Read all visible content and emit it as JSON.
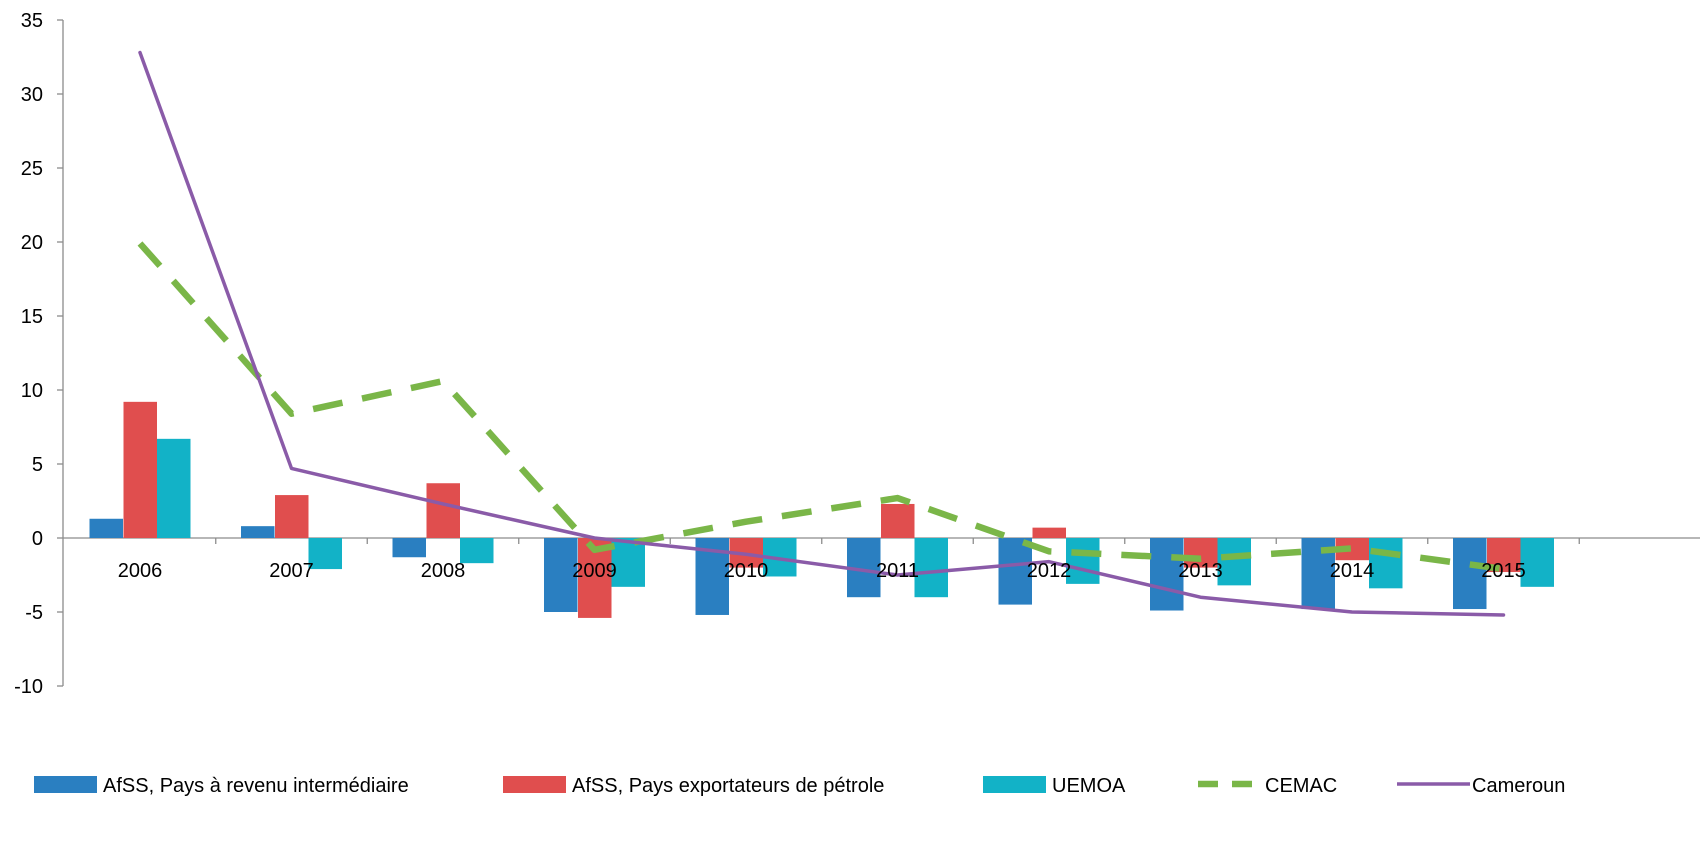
{
  "chart_data": {
    "type": "bar",
    "categories": [
      "2006",
      "2007",
      "2008",
      "2009",
      "2010",
      "2011",
      "2012",
      "2013",
      "2014",
      "2015"
    ],
    "ylim": [
      -10,
      35
    ],
    "yticks": [
      -10,
      -5,
      0,
      5,
      10,
      15,
      20,
      25,
      30,
      35
    ],
    "grid": false,
    "legend": "bottom",
    "series": [
      {
        "name": "AfSS, Pays à revenu intermédiaire",
        "kind": "bar",
        "color": "#2a7fc1",
        "values": [
          1.3,
          0.8,
          -1.3,
          -5.0,
          -5.2,
          -4.0,
          -4.5,
          -4.9,
          -4.8,
          -4.8
        ]
      },
      {
        "name": "AfSS, Pays exportateurs de pétrole",
        "kind": "bar",
        "color": "#e04e4e",
        "values": [
          9.2,
          2.9,
          3.7,
          -5.4,
          -2.0,
          2.3,
          0.7,
          -2.0,
          -1.5,
          -2.3
        ]
      },
      {
        "name": "UEMOA",
        "kind": "bar",
        "color": "#12b2c7",
        "values": [
          6.7,
          -2.1,
          -1.7,
          -3.3,
          -2.6,
          -4.0,
          -3.1,
          -3.2,
          -3.4,
          -3.3
        ]
      },
      {
        "name": "CEMAC",
        "kind": "line-dashed",
        "color": "#7ab648",
        "values": [
          19.9,
          8.4,
          10.6,
          -0.8,
          1.1,
          2.7,
          -0.9,
          -1.4,
          -0.7,
          -2.1
        ]
      },
      {
        "name": "Cameroun",
        "kind": "line",
        "color": "#8a5ba8",
        "values": [
          32.8,
          4.7,
          2.3,
          0.0,
          -1.1,
          -2.5,
          -1.6,
          -4.0,
          -5.0,
          -5.2
        ]
      }
    ]
  }
}
